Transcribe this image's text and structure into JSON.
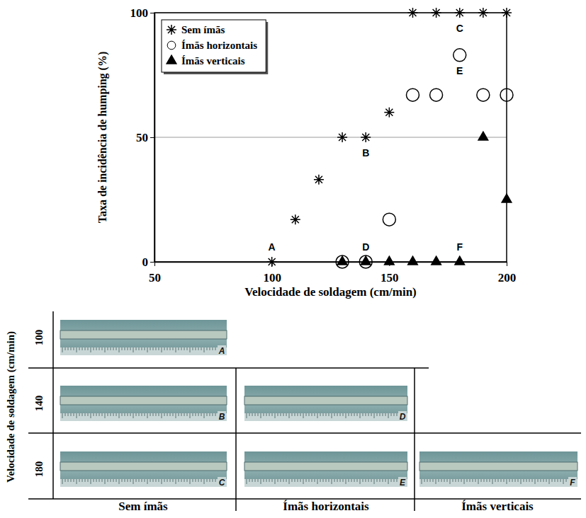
{
  "chart_data": {
    "type": "scatter",
    "x_label": "Velocidade de soldagem (cm/min)",
    "y_label": "Taxa de incidência de humping (%)",
    "xlim": [
      50,
      200
    ],
    "xticks": [
      50,
      100,
      150,
      200
    ],
    "ylim": [
      0,
      100
    ],
    "yticks": [
      0,
      50,
      100
    ],
    "grid": true,
    "legend": "upper left",
    "series": [
      {
        "name": "Sem ímãs",
        "color": "#000000",
        "marker": "asterisk",
        "x": [
          100,
          110,
          120,
          130,
          140,
          150,
          160,
          170,
          180,
          190,
          200
        ],
        "values": [
          0,
          17,
          33,
          50,
          50,
          60,
          100,
          100,
          100,
          100,
          100
        ]
      },
      {
        "name": "Ímãs horizontais",
        "color": "#000000",
        "marker": "circle",
        "x": [
          130,
          140,
          150,
          160,
          170,
          180,
          190,
          200
        ],
        "values": [
          0,
          0,
          17,
          67,
          67,
          83,
          67,
          67
        ]
      },
      {
        "name": "Ímãs verticais",
        "color": "#000000",
        "marker": "triangle",
        "x": [
          130,
          140,
          150,
          160,
          170,
          180,
          190,
          200
        ],
        "values": [
          0,
          0,
          0,
          0,
          0,
          0,
          50,
          25
        ]
      }
    ],
    "annotations": [
      {
        "text": "A",
        "x": 100,
        "y": 0
      },
      {
        "text": "B",
        "x": 140,
        "y": 50
      },
      {
        "text": "C",
        "x": 180,
        "y": 100
      },
      {
        "text": "D",
        "x": 140,
        "y": 0
      },
      {
        "text": "E",
        "x": 180,
        "y": 83
      },
      {
        "text": "F",
        "x": 180,
        "y": 0
      }
    ]
  },
  "photo_grid": {
    "row_axis_label": "Velocidade de soldagem (cm/min)",
    "rows": [
      100,
      140,
      180
    ],
    "columns": [
      "Sem ímãs",
      "Ímãs horizontais",
      "Ímãs verticais"
    ],
    "cells": [
      [
        "A",
        null,
        null
      ],
      [
        "B",
        "D",
        null
      ],
      [
        "C",
        "E",
        "F"
      ]
    ]
  }
}
